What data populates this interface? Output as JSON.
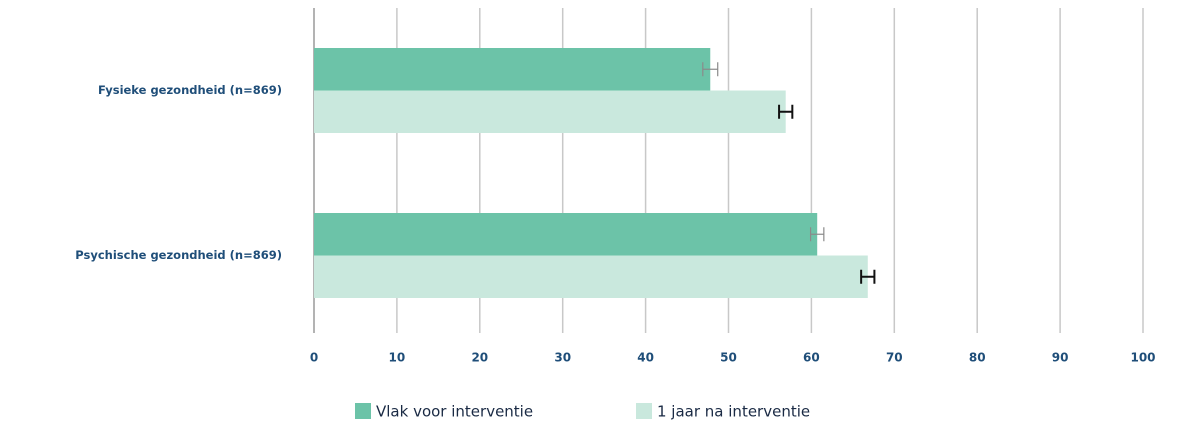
{
  "chart_data": {
    "type": "bar",
    "orientation": "horizontal",
    "categories": [
      "Fysieke gezondheid (n=869)",
      "Psychische gezondheid (n=869)"
    ],
    "series": [
      {
        "name": "Vlak voor interventie",
        "color": "#6cc3a8",
        "error_color": "#8a8a8a",
        "values": [
          47.8,
          60.7
        ],
        "errors": [
          0.9,
          0.8
        ]
      },
      {
        "name": "1 jaar na interventie",
        "color": "#c9e8dd",
        "error_color": "#111111",
        "values": [
          56.9,
          66.8
        ],
        "errors": [
          0.8,
          0.8
        ]
      }
    ],
    "xlim": [
      0,
      100
    ],
    "xticks": [
      0,
      10,
      20,
      30,
      40,
      50,
      60,
      70,
      80,
      90,
      100
    ],
    "grid": true,
    "legend": "bottom"
  }
}
